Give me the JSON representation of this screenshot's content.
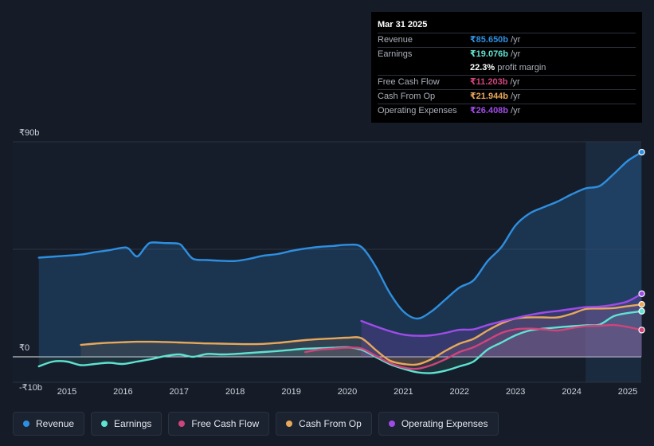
{
  "chart_data": {
    "type": "line",
    "y_currency_labels": {
      "top": "₹90b",
      "zero": "₹0",
      "bottom": "-₹10b"
    },
    "ylim": [
      -10,
      90
    ],
    "xlim": [
      2014.5,
      2025.25
    ],
    "x_ticks": [
      "2015",
      "2016",
      "2017",
      "2018",
      "2019",
      "2020",
      "2021",
      "2022",
      "2023",
      "2024",
      "2025"
    ],
    "forecast_start": 2024.25,
    "series": [
      {
        "name": "Revenue",
        "color": "#2e8fe0",
        "points": [
          [
            2014.5,
            41.5
          ],
          [
            2014.8,
            42
          ],
          [
            2015.25,
            42.8
          ],
          [
            2015.5,
            43.8
          ],
          [
            2015.75,
            44.6
          ],
          [
            2016.0,
            45.7
          ],
          [
            2016.1,
            45.3
          ],
          [
            2016.25,
            42
          ],
          [
            2016.4,
            46
          ],
          [
            2016.5,
            47.8
          ],
          [
            2016.75,
            47.6
          ],
          [
            2017.0,
            47.3
          ],
          [
            2017.1,
            45
          ],
          [
            2017.25,
            41
          ],
          [
            2017.5,
            40.5
          ],
          [
            2017.75,
            40.2
          ],
          [
            2018.0,
            40.1
          ],
          [
            2018.25,
            41
          ],
          [
            2018.5,
            42.3
          ],
          [
            2018.75,
            43
          ],
          [
            2019.0,
            44.3
          ],
          [
            2019.25,
            45.3
          ],
          [
            2019.5,
            46
          ],
          [
            2019.75,
            46.4
          ],
          [
            2020.0,
            46.9
          ],
          [
            2020.25,
            46
          ],
          [
            2020.5,
            38
          ],
          [
            2020.75,
            27
          ],
          [
            2021.0,
            19
          ],
          [
            2021.25,
            16
          ],
          [
            2021.5,
            19
          ],
          [
            2021.75,
            24
          ],
          [
            2022.0,
            29
          ],
          [
            2022.25,
            32
          ],
          [
            2022.5,
            40
          ],
          [
            2022.75,
            46
          ],
          [
            2023.0,
            55
          ],
          [
            2023.25,
            60
          ],
          [
            2023.5,
            62.6
          ],
          [
            2023.75,
            65
          ],
          [
            2024.0,
            68
          ],
          [
            2024.25,
            70.5
          ],
          [
            2024.5,
            71.5
          ],
          [
            2024.75,
            76.5
          ],
          [
            2025.0,
            82
          ],
          [
            2025.25,
            85.65
          ]
        ]
      },
      {
        "name": "Earnings",
        "color": "#5fe3d2",
        "points": [
          [
            2014.5,
            -4
          ],
          [
            2014.75,
            -2
          ],
          [
            2015.0,
            -2
          ],
          [
            2015.25,
            -3.5
          ],
          [
            2015.5,
            -3
          ],
          [
            2015.75,
            -2.5
          ],
          [
            2016.0,
            -3
          ],
          [
            2016.25,
            -2
          ],
          [
            2016.5,
            -1
          ],
          [
            2016.75,
            0.3
          ],
          [
            2017.0,
            1
          ],
          [
            2017.25,
            0
          ],
          [
            2017.5,
            1.2
          ],
          [
            2017.75,
            1.0
          ],
          [
            2018.0,
            1.2
          ],
          [
            2018.25,
            1.6
          ],
          [
            2018.5,
            2.0
          ],
          [
            2018.75,
            2.4
          ],
          [
            2019.0,
            2.9
          ],
          [
            2019.25,
            3.4
          ],
          [
            2019.5,
            3.6
          ],
          [
            2019.75,
            3.8
          ],
          [
            2020.0,
            4
          ],
          [
            2020.25,
            3
          ],
          [
            2020.5,
            0
          ],
          [
            2020.75,
            -3
          ],
          [
            2021.0,
            -5
          ],
          [
            2021.25,
            -6.5
          ],
          [
            2021.5,
            -6.8
          ],
          [
            2021.75,
            -5.8
          ],
          [
            2022.0,
            -4
          ],
          [
            2022.25,
            -2
          ],
          [
            2022.5,
            3
          ],
          [
            2022.75,
            6
          ],
          [
            2023.0,
            9
          ],
          [
            2023.25,
            11
          ],
          [
            2023.5,
            11.8
          ],
          [
            2023.75,
            12.3
          ],
          [
            2024.0,
            12.8
          ],
          [
            2024.25,
            13.2
          ],
          [
            2024.5,
            13.5
          ],
          [
            2024.75,
            17
          ],
          [
            2025.0,
            18.3
          ],
          [
            2025.25,
            19.076
          ]
        ]
      },
      {
        "name": "Free Cash Flow",
        "color": "#d0447c",
        "points": [
          [
            2019.25,
            2
          ],
          [
            2019.5,
            3
          ],
          [
            2019.75,
            3.4
          ],
          [
            2020.0,
            3.8
          ],
          [
            2020.25,
            3.5
          ],
          [
            2020.5,
            0.5
          ],
          [
            2020.75,
            -2.5
          ],
          [
            2021.0,
            -4.5
          ],
          [
            2021.25,
            -5
          ],
          [
            2021.5,
            -3.5
          ],
          [
            2021.75,
            -1
          ],
          [
            2022.0,
            2
          ],
          [
            2022.25,
            4
          ],
          [
            2022.5,
            7
          ],
          [
            2022.75,
            10
          ],
          [
            2023.0,
            11.5
          ],
          [
            2023.25,
            11.8
          ],
          [
            2023.5,
            11.5
          ],
          [
            2023.75,
            11
          ],
          [
            2024.0,
            12
          ],
          [
            2024.25,
            12.8
          ],
          [
            2024.5,
            13
          ],
          [
            2024.75,
            13.3
          ],
          [
            2025.0,
            12.5
          ],
          [
            2025.25,
            11.203
          ]
        ]
      },
      {
        "name": "Cash From Op",
        "color": "#e8a85a",
        "points": [
          [
            2015.25,
            5
          ],
          [
            2015.5,
            5.5
          ],
          [
            2015.75,
            5.9
          ],
          [
            2016.0,
            6.1
          ],
          [
            2016.25,
            6.3
          ],
          [
            2016.5,
            6.3
          ],
          [
            2016.75,
            6.2
          ],
          [
            2017.0,
            6
          ],
          [
            2017.25,
            5.8
          ],
          [
            2017.5,
            5.6
          ],
          [
            2017.75,
            5.5
          ],
          [
            2018.0,
            5.4
          ],
          [
            2018.25,
            5.3
          ],
          [
            2018.5,
            5.4
          ],
          [
            2018.75,
            5.8
          ],
          [
            2019.0,
            6.4
          ],
          [
            2019.25,
            7
          ],
          [
            2019.5,
            7.4
          ],
          [
            2019.75,
            7.7
          ],
          [
            2020.0,
            8.0
          ],
          [
            2020.25,
            7.8
          ],
          [
            2020.5,
            3
          ],
          [
            2020.75,
            -1.5
          ],
          [
            2021.0,
            -3
          ],
          [
            2021.25,
            -3.2
          ],
          [
            2021.5,
            -1
          ],
          [
            2021.75,
            2.5
          ],
          [
            2022.0,
            5.5
          ],
          [
            2022.25,
            7.5
          ],
          [
            2022.5,
            11
          ],
          [
            2022.75,
            14
          ],
          [
            2023.0,
            16
          ],
          [
            2023.25,
            16.5
          ],
          [
            2023.5,
            16.5
          ],
          [
            2023.75,
            16.5
          ],
          [
            2024.0,
            18
          ],
          [
            2024.25,
            20
          ],
          [
            2024.5,
            20.2
          ],
          [
            2024.75,
            20.4
          ],
          [
            2025.0,
            21.2
          ],
          [
            2025.25,
            21.944
          ]
        ]
      },
      {
        "name": "Operating Expenses",
        "color": "#a04be8",
        "points": [
          [
            2020.25,
            15
          ],
          [
            2020.5,
            12.8
          ],
          [
            2020.75,
            10.8
          ],
          [
            2021.0,
            9.3
          ],
          [
            2021.25,
            8.8
          ],
          [
            2021.5,
            9
          ],
          [
            2021.75,
            10
          ],
          [
            2022.0,
            11.3
          ],
          [
            2022.25,
            11.5
          ],
          [
            2022.5,
            13.3
          ],
          [
            2022.75,
            14.8
          ],
          [
            2023.0,
            16.2
          ],
          [
            2023.25,
            17.5
          ],
          [
            2023.5,
            18.5
          ],
          [
            2023.75,
            19.2
          ],
          [
            2024.0,
            20
          ],
          [
            2024.25,
            20.8
          ],
          [
            2024.5,
            21
          ],
          [
            2024.75,
            21.8
          ],
          [
            2025.0,
            23.2
          ],
          [
            2025.25,
            26.408
          ]
        ]
      }
    ]
  },
  "tooltip": {
    "date": "Mar 31 2025",
    "rows": [
      {
        "label": "Revenue",
        "value": "₹85.650b",
        "unit": " /yr",
        "color": "#2e8fe0"
      },
      {
        "label": "Earnings",
        "value": "₹19.076b",
        "unit": " /yr",
        "color": "#5fe3d2"
      },
      {
        "label": "",
        "value": "22.3%",
        "unit": " profit margin",
        "color": "#ffffff"
      },
      {
        "label": "Free Cash Flow",
        "value": "₹11.203b",
        "unit": " /yr",
        "color": "#d0447c"
      },
      {
        "label": "Cash From Op",
        "value": "₹21.944b",
        "unit": " /yr",
        "color": "#e8a85a"
      },
      {
        "label": "Operating Expenses",
        "value": "₹26.408b",
        "unit": " /yr",
        "color": "#a04be8"
      }
    ]
  },
  "legend": [
    {
      "label": "Revenue",
      "color": "#2e8fe0"
    },
    {
      "label": "Earnings",
      "color": "#5fe3d2"
    },
    {
      "label": "Free Cash Flow",
      "color": "#d0447c"
    },
    {
      "label": "Cash From Op",
      "color": "#e8a85a"
    },
    {
      "label": "Operating Expenses",
      "color": "#a04be8"
    }
  ]
}
